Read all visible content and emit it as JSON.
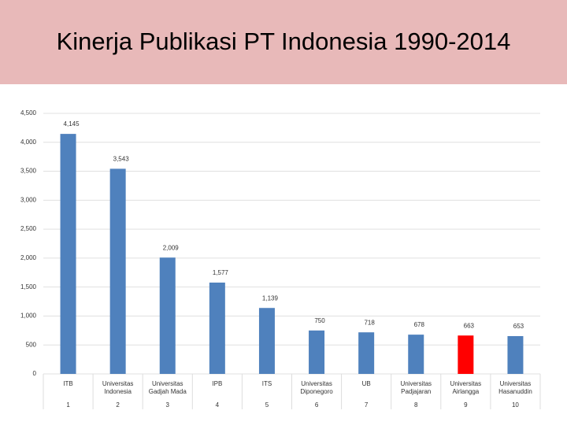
{
  "chart_data": {
    "type": "bar",
    "title": "Kinerja Publikasi PT Indonesia 1990-2014",
    "categories": [
      [
        "ITB"
      ],
      [
        "Universitas",
        "Indonesia"
      ],
      [
        "Universitas",
        "Gadjah Mada"
      ],
      [
        "IPB"
      ],
      [
        "ITS"
      ],
      [
        "Universitas",
        "Diponegoro"
      ],
      [
        "UB"
      ],
      [
        "Universitas",
        "Padjajaran"
      ],
      [
        "Universitas",
        "Airlangga"
      ],
      [
        "Universitas",
        "Hasanuddin"
      ]
    ],
    "ranks": [
      1,
      2,
      3,
      4,
      5,
      6,
      7,
      8,
      9,
      10
    ],
    "values": [
      4145,
      3543,
      2009,
      1577,
      1139,
      750,
      718,
      678,
      663,
      653
    ],
    "value_labels": [
      "4,145",
      "3,543",
      "2,009",
      "1,577",
      "1,139",
      "750",
      "718",
      "678",
      "663",
      "653"
    ],
    "colors": [
      "#4f81bd",
      "#4f81bd",
      "#4f81bd",
      "#4f81bd",
      "#4f81bd",
      "#4f81bd",
      "#4f81bd",
      "#4f81bd",
      "#ff0000",
      "#4f81bd"
    ],
    "ylim": [
      0,
      4500
    ],
    "yticks": [
      0,
      500,
      {
        "value": 1000,
        "label": "1,000"
      },
      {
        "value": 1500,
        "label": "1,500"
      },
      {
        "value": 2000,
        "label": "2,000"
      },
      {
        "value": 2500,
        "label": "2,500"
      },
      {
        "value": 3000,
        "label": "3,000"
      },
      {
        "value": 3500,
        "label": "3,500"
      },
      {
        "value": 4000,
        "label": "4,000"
      },
      {
        "value": 4500,
        "label": "4,500"
      }
    ],
    "grid": true
  }
}
